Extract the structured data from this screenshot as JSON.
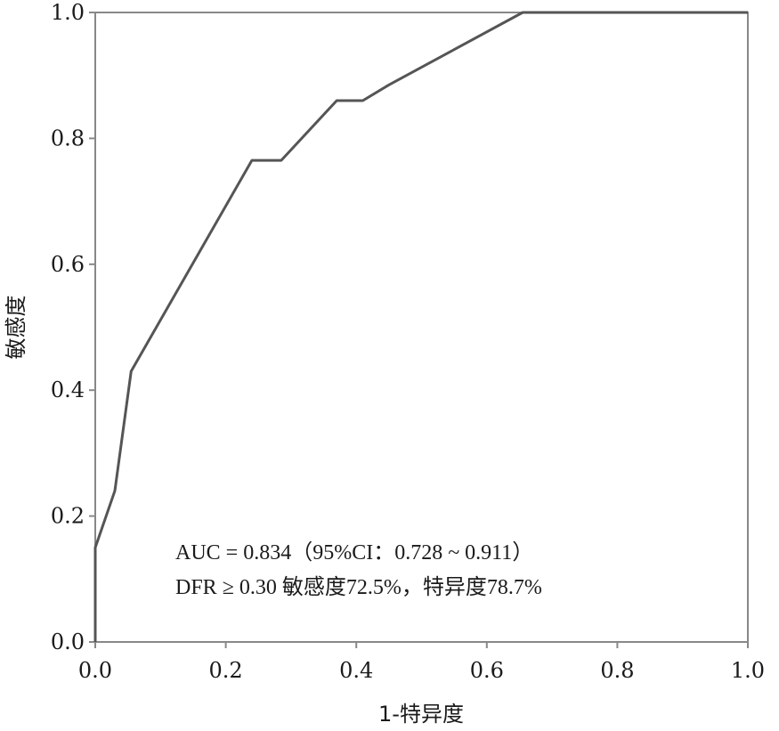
{
  "chart_data": {
    "type": "line",
    "title": "",
    "xlabel": "1-特异度",
    "ylabel": "敏感度",
    "xlim": [
      0,
      1
    ],
    "ylim": [
      0,
      1
    ],
    "x_ticks": [
      "0.0",
      "0.2",
      "0.4",
      "0.6",
      "0.8",
      "1.0"
    ],
    "y_ticks": [
      "0.0",
      "0.2",
      "0.4",
      "0.6",
      "0.8",
      "1.0"
    ],
    "grid": false,
    "legend": "none",
    "series": [
      {
        "x": [
          0.0,
          0.0,
          0.03,
          0.055,
          0.24,
          0.285,
          0.37,
          0.41,
          0.45,
          0.655,
          1.0
        ],
        "y": [
          0.0,
          0.15,
          0.24,
          0.43,
          0.765,
          0.765,
          0.86,
          0.86,
          0.885,
          1.0,
          1.0
        ]
      }
    ],
    "annotations": [
      "AUC = 0.834（95%CI：0.728 ~ 0.911）",
      "DFR ≥ 0.30  敏感度72.5%，特异度78.7%"
    ],
    "line_color": "#555555",
    "axis_color": "#888888"
  }
}
